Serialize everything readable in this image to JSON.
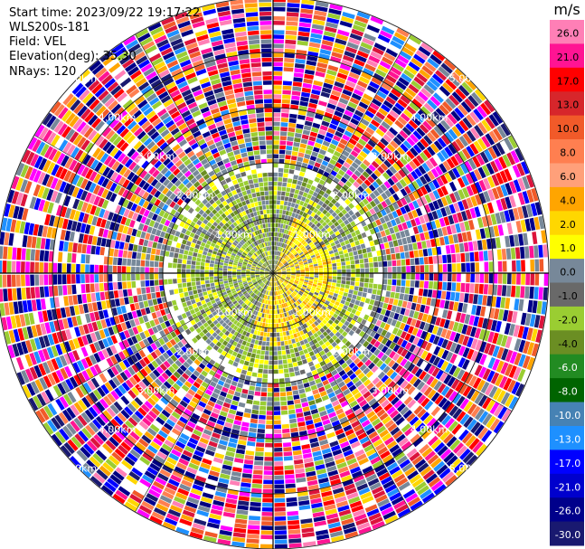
{
  "header": {
    "start_time": "Start time: 2023/09/22 19:17:22",
    "instrument": "WLS200s-181",
    "field": "Field: VEL",
    "elevation": "Elevation(deg): 35.30",
    "nrays": "NRays: 120"
  },
  "range_rings": {
    "labels": [
      "1.00km",
      "2.00km",
      "3.00km",
      "4.00km",
      "5.00km"
    ],
    "ring_values_km": [
      1,
      2,
      3,
      4,
      5
    ]
  },
  "colorbar": {
    "unit": "m/s",
    "ticks": [
      "26.0",
      "21.0",
      "17.0",
      "13.0",
      "10.0",
      "8.0",
      "6.0",
      "4.0",
      "2.0",
      "1.0",
      "0.0",
      "-1.0",
      "-2.0",
      "-4.0",
      "-6.0",
      "-8.0",
      "-10.0",
      "-13.0",
      "-17.0",
      "-21.0",
      "-26.0",
      "-30.0"
    ],
    "colors": [
      "#ff7fb6",
      "#ff1493",
      "#ff0000",
      "#d7262b",
      "#f15a29",
      "#ff7f50",
      "#ffa07a",
      "#ffa500",
      "#ffd700",
      "#ffff00",
      "#778899",
      "#696969",
      "#9acd32",
      "#6b8e23",
      "#228b22",
      "#006400",
      "#4682b4",
      "#1e90ff",
      "#0000ff",
      "#0000cd",
      "#00008b",
      "#191970"
    ]
  },
  "chart_data": {
    "type": "heatmap",
    "projection": "polar PPI",
    "field": "VEL",
    "units": "m/s",
    "n_rays": 120,
    "elevation_deg": 35.3,
    "max_range_km": 5.0,
    "range_ring_km": [
      1,
      2,
      3,
      4,
      5
    ],
    "value_range": [
      -30,
      30
    ],
    "regions": [
      {
        "range_km": [
          0,
          1
        ],
        "sector": "east / south-east",
        "dominant_value_ms": 1.5
      },
      {
        "range_km": [
          0,
          2
        ],
        "sector": "west / north-west",
        "dominant_value_ms": -2
      },
      {
        "range_km": [
          0,
          2
        ],
        "sector": "scattered",
        "dominant_value_ms": 0
      },
      {
        "range_km": [
          2,
          5
        ],
        "sector": "all",
        "dominant_value_ms": "noise, full range"
      }
    ]
  }
}
